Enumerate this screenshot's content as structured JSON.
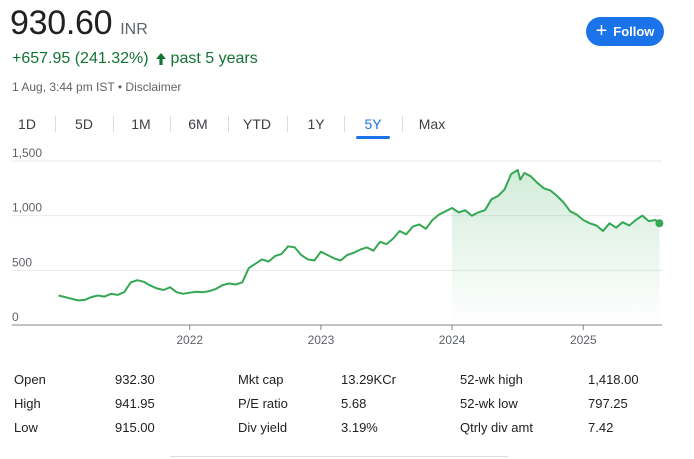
{
  "quote": {
    "price": "930.60",
    "currency": "INR",
    "change": "+657.95 (241.32%)",
    "period": "past 5 years",
    "timestamp": "1 Aug, 3:44 pm IST",
    "separator": "•",
    "disclaimer": "Disclaimer",
    "up_icon": "arrow-up-icon"
  },
  "follow": {
    "label": "Follow",
    "icon": "plus-icon"
  },
  "tabs": [
    {
      "label": "1D"
    },
    {
      "label": "5D"
    },
    {
      "label": "1M"
    },
    {
      "label": "6M"
    },
    {
      "label": "YTD"
    },
    {
      "label": "1Y"
    },
    {
      "label": "5Y",
      "active": true
    },
    {
      "label": "Max"
    }
  ],
  "colors": {
    "line": "#34a853",
    "accent": "#1a73e8",
    "positive": "#137333"
  },
  "chart_data": {
    "type": "area",
    "title": "",
    "xlabel": "",
    "ylabel": "",
    "ylim": [
      0,
      1500
    ],
    "xlim": [
      2020.95,
      2025.6
    ],
    "y_ticks": [
      {
        "value": 0,
        "label": "0"
      },
      {
        "value": 500,
        "label": "500"
      },
      {
        "value": 1000,
        "label": "1,000"
      },
      {
        "value": 1500,
        "label": "1,500"
      }
    ],
    "x_ticks": [
      {
        "value": 2022.0,
        "label": "2022"
      },
      {
        "value": 2023.0,
        "label": "2023"
      },
      {
        "value": 2024.0,
        "label": "2024"
      },
      {
        "value": 2025.0,
        "label": "2025"
      }
    ],
    "grid": true,
    "series": [
      {
        "x": [
          2021.0,
          2021.05,
          2021.1,
          2021.15,
          2021.2,
          2021.25,
          2021.3,
          2021.35,
          2021.4,
          2021.45,
          2021.5,
          2021.55,
          2021.6,
          2021.65,
          2021.7,
          2021.75,
          2021.8,
          2021.85,
          2021.9,
          2021.95,
          2022.0,
          2022.05,
          2022.1,
          2022.15,
          2022.2,
          2022.25,
          2022.3,
          2022.35,
          2022.4,
          2022.45,
          2022.5,
          2022.55,
          2022.6,
          2022.65,
          2022.7,
          2022.75,
          2022.8,
          2022.85,
          2022.9,
          2022.95,
          2023.0,
          2023.05,
          2023.1,
          2023.15,
          2023.2,
          2023.25,
          2023.3,
          2023.35,
          2023.4,
          2023.45,
          2023.5,
          2023.55,
          2023.6,
          2023.65,
          2023.7,
          2023.75,
          2023.8,
          2023.85,
          2023.9,
          2023.95,
          2024.0,
          2024.05,
          2024.1,
          2024.15,
          2024.2,
          2024.25,
          2024.3,
          2024.35,
          2024.4,
          2024.45,
          2024.5,
          2024.52,
          2024.55,
          2024.6,
          2024.65,
          2024.7,
          2024.75,
          2024.8,
          2024.85,
          2024.9,
          2024.95,
          2025.0,
          2025.05,
          2025.1,
          2025.15,
          2025.2,
          2025.25,
          2025.3,
          2025.35,
          2025.4,
          2025.45,
          2025.5,
          2025.55,
          2025.58
        ],
        "values": [
          270,
          255,
          240,
          225,
          230,
          255,
          270,
          260,
          285,
          275,
          300,
          390,
          410,
          395,
          360,
          335,
          320,
          345,
          300,
          285,
          295,
          305,
          300,
          310,
          330,
          365,
          380,
          370,
          390,
          520,
          560,
          600,
          580,
          630,
          650,
          720,
          710,
          640,
          600,
          590,
          670,
          640,
          610,
          590,
          640,
          660,
          690,
          710,
          680,
          760,
          740,
          790,
          860,
          830,
          900,
          920,
          880,
          960,
          1010,
          1040,
          1070,
          1030,
          1050,
          1000,
          1030,
          1050,
          1150,
          1180,
          1240,
          1380,
          1418,
          1330,
          1390,
          1360,
          1300,
          1250,
          1230,
          1180,
          1120,
          1040,
          1010,
          960,
          930,
          910,
          860,
          930,
          890,
          940,
          910,
          960,
          1000,
          950,
          960,
          930.6
        ]
      }
    ]
  },
  "stats": [
    {
      "label": "Open",
      "value": "932.30"
    },
    {
      "label": "High",
      "value": "941.95"
    },
    {
      "label": "Low",
      "value": "915.00"
    },
    {
      "label": "Mkt cap",
      "value": "13.29KCr"
    },
    {
      "label": "P/E ratio",
      "value": "5.68"
    },
    {
      "label": "Div yield",
      "value": "3.19%"
    },
    {
      "label": "52-wk high",
      "value": "1,418.00"
    },
    {
      "label": "52-wk low",
      "value": "797.25"
    },
    {
      "label": "Qtrly div amt",
      "value": "7.42"
    }
  ]
}
